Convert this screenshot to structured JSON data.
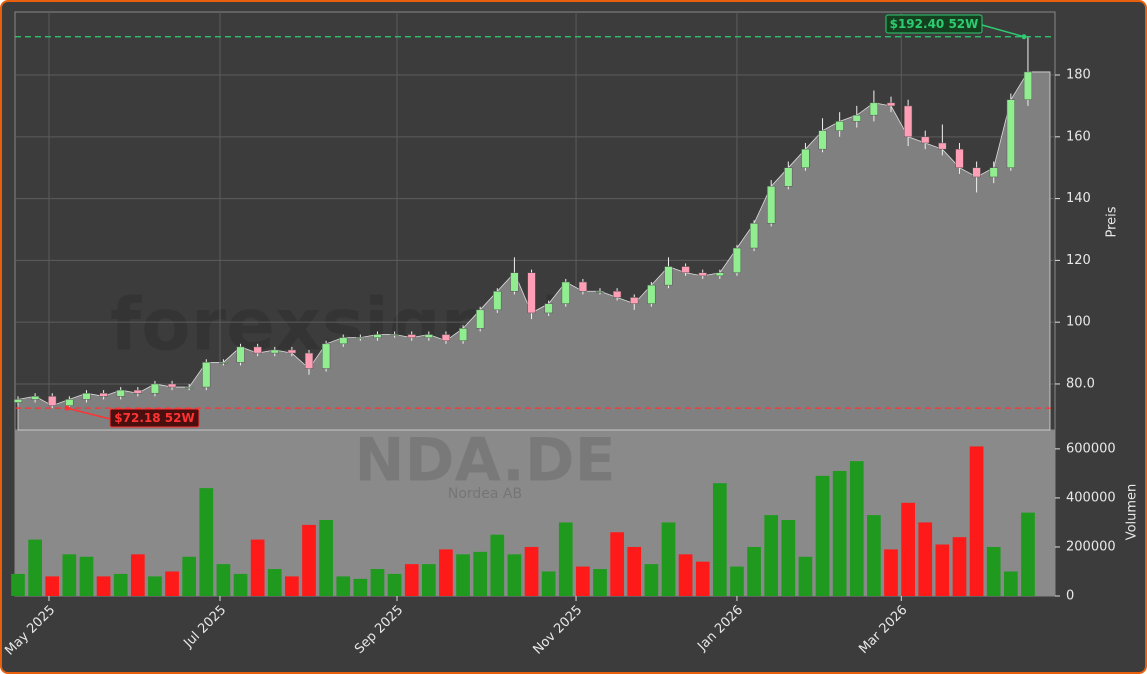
{
  "chart_data": {
    "type": "candlestick",
    "watermark": "forexsignale.trade",
    "symbol": "NDA.DE",
    "company": "Nordea AB",
    "y_label": "Preis",
    "y2_label": "Volumen",
    "xlim": [
      -0.175,
      60.58
    ],
    "xticks": [
      {
        "value": 1.81,
        "label": "May 2025"
      },
      {
        "value": 11.8,
        "label": "Jul 2025"
      },
      {
        "value": 22.14,
        "label": "Sep 2025"
      },
      {
        "value": 32.6,
        "label": "Nov 2025"
      },
      {
        "value": 42.0,
        "label": "Jan 2026"
      },
      {
        "value": 51.6,
        "label": "Mar 2026"
      }
    ],
    "ylim": [
      65.1,
      200.4
    ],
    "yticks": [
      {
        "value": 80,
        "label": "80.0"
      },
      100,
      120,
      140,
      160,
      180
    ],
    "y2lim": [
      0,
      677000
    ],
    "y2ticks": [
      0,
      200000,
      400000,
      600000
    ],
    "grid": true,
    "up_color": "#90ee90",
    "down_color": "#ff9eb5",
    "area_color": "#808080",
    "volume_up_color": "#1f9a1f",
    "volume_down_color": "#ff1a1a",
    "open": [
      74,
      75,
      76,
      73,
      75,
      77,
      76,
      78,
      77,
      80,
      79,
      79,
      87,
      87,
      92,
      90,
      91,
      90,
      85,
      93,
      95,
      95,
      96,
      96,
      95,
      96,
      94,
      98,
      104,
      110,
      116,
      103,
      106,
      113,
      110,
      110,
      108,
      106,
      112,
      118,
      116,
      115,
      116,
      124,
      132,
      144,
      150,
      156,
      162,
      165,
      167,
      171,
      170,
      160,
      158,
      156,
      150,
      147,
      150,
      172
    ],
    "high": [
      76,
      77,
      77,
      76,
      78,
      78,
      79,
      79,
      81,
      81,
      80,
      88,
      88,
      93,
      93,
      92,
      92,
      91,
      94,
      96,
      96,
      97,
      97,
      97,
      97,
      97,
      99,
      105,
      111,
      121,
      117,
      107,
      114,
      114,
      111,
      111,
      109,
      113,
      121,
      119,
      117,
      117,
      125,
      133,
      146,
      152,
      158,
      166,
      168,
      170,
      175,
      173,
      172,
      162,
      164,
      158,
      152,
      152,
      174,
      192.4
    ],
    "low": [
      73,
      74,
      72.18,
      72.6,
      74,
      75,
      75,
      76,
      76,
      78,
      78,
      78,
      86,
      86,
      89,
      89,
      89,
      83,
      84,
      92,
      94,
      94,
      95,
      94,
      94,
      93,
      93,
      97,
      103,
      109,
      101,
      102,
      105,
      109,
      109,
      107,
      104,
      105,
      111,
      115,
      114,
      114,
      115,
      123,
      131,
      143,
      149,
      155,
      160,
      163,
      165,
      168,
      157,
      156,
      154,
      148,
      142,
      145,
      149,
      170
    ],
    "close": [
      75,
      76,
      73,
      75,
      77,
      76,
      78,
      77,
      80,
      79,
      79,
      87,
      87,
      92,
      90,
      91,
      90,
      85,
      93,
      95,
      95,
      96,
      96,
      95,
      96,
      94,
      98,
      104,
      110,
      116,
      103,
      106,
      113,
      110,
      110,
      108,
      106,
      112,
      118,
      116,
      115,
      116,
      124,
      132,
      144,
      150,
      156,
      162,
      165,
      167,
      171,
      170,
      160,
      158,
      156,
      150,
      147,
      150,
      172,
      181
    ],
    "volume": [
      90000,
      230000,
      80000,
      170000,
      160000,
      80000,
      90000,
      170000,
      80000,
      100000,
      160000,
      440000,
      130000,
      90000,
      230000,
      110000,
      80000,
      290000,
      310000,
      80000,
      70000,
      110000,
      90000,
      130000,
      130000,
      190000,
      170000,
      180000,
      250000,
      170000,
      200000,
      100000,
      300000,
      120000,
      110000,
      260000,
      200000,
      130000,
      300000,
      170000,
      140000,
      460000,
      120000,
      200000,
      330000,
      310000,
      160000,
      490000,
      510000,
      550000,
      330000,
      190000,
      380000,
      300000,
      210000,
      240000,
      610000,
      200000,
      100000,
      340000
    ],
    "annotations": [
      {
        "value": 192.4,
        "label": "$192.40 52W",
        "color": "#2ecc71"
      },
      {
        "value": 72.18,
        "label": "$72.18 52W",
        "color": "#ff3333"
      }
    ]
  }
}
